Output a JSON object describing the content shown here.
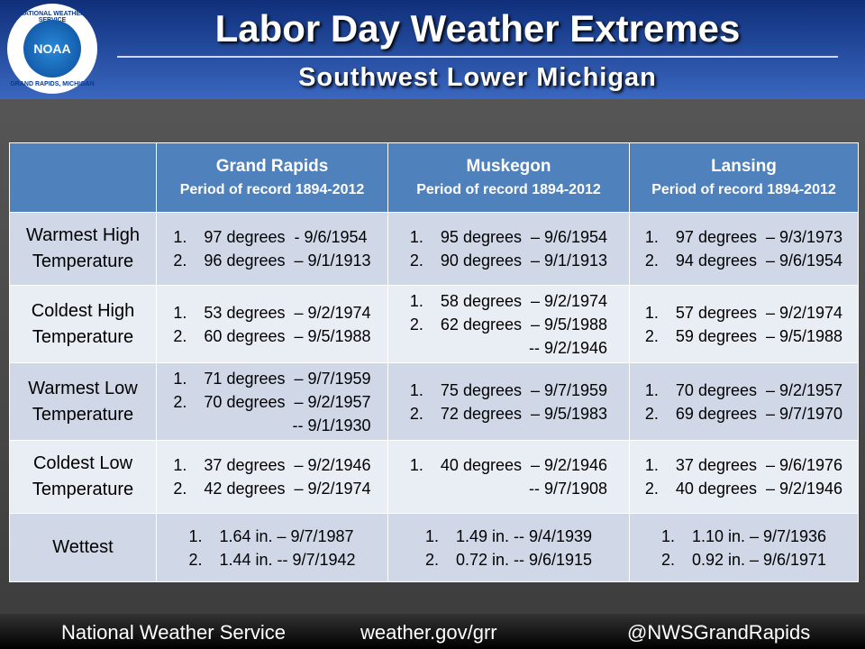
{
  "header": {
    "title": "Labor Day Weather Extremes",
    "subtitle": "Southwest Lower Michigan",
    "logo": {
      "top": "NATIONAL WEATHER SERVICE",
      "center": "NOAA",
      "bottom": "GRAND RAPIDS, MICHIGAN"
    }
  },
  "table": {
    "columns": [
      {
        "name": "Grand Rapids",
        "period": "Period of record 1894-2012"
      },
      {
        "name": "Muskegon",
        "period": "Period of record 1894-2012"
      },
      {
        "name": "Lansing",
        "period": "Period of record 1894-2012"
      }
    ],
    "rows": [
      {
        "label": "Warmest High Temperature",
        "cells": [
          [
            {
              "marker": "1.",
              "text": "97 degrees  - 9/6/1954"
            },
            {
              "marker": "2.",
              "text": "96 degrees  – 9/1/1913"
            }
          ],
          [
            {
              "marker": "1.",
              "text": "95 degrees  – 9/6/1954"
            },
            {
              "marker": "2.",
              "text": "90 degrees  – 9/1/1913"
            }
          ],
          [
            {
              "marker": "1.",
              "text": "97 degrees  – 9/3/1973"
            },
            {
              "marker": "2.",
              "text": "94 degrees  – 9/6/1954"
            }
          ]
        ]
      },
      {
        "label": "Coldest High Temperature",
        "cells": [
          [
            {
              "marker": "1.",
              "text": "53 degrees  – 9/2/1974"
            },
            {
              "marker": "2.",
              "text": "60 degrees  – 9/5/1988"
            }
          ],
          [
            {
              "marker": "1.",
              "text": "58 degrees  – 9/2/1974"
            },
            {
              "marker": "2.",
              "text": "62 degrees  – 9/5/1988"
            },
            {
              "text": "-- 9/2/1946"
            }
          ],
          [
            {
              "marker": "1.",
              "text": "57 degrees  – 9/2/1974"
            },
            {
              "marker": "2.",
              "text": "59 degrees  – 9/5/1988"
            }
          ]
        ]
      },
      {
        "label": "Warmest Low Temperature",
        "cells": [
          [
            {
              "marker": "1.",
              "text": "71 degrees  – 9/7/1959"
            },
            {
              "marker": "2.",
              "text": "70 degrees  – 9/2/1957"
            },
            {
              "text": "-- 9/1/1930"
            }
          ],
          [
            {
              "marker": "1.",
              "text": "75 degrees  – 9/7/1959"
            },
            {
              "marker": "2.",
              "text": "72 degrees  – 9/5/1983"
            }
          ],
          [
            {
              "marker": "1.",
              "text": "70 degrees  – 9/2/1957"
            },
            {
              "marker": "2.",
              "text": "69 degrees  – 9/7/1970"
            }
          ]
        ]
      },
      {
        "label": "Coldest Low Temperature",
        "cells": [
          [
            {
              "marker": "1.",
              "text": "37 degrees  – 9/2/1946"
            },
            {
              "marker": "2.",
              "text": "42 degrees  – 9/2/1974"
            }
          ],
          [
            {
              "marker": "1.",
              "text": "40 degrees  – 9/2/1946"
            },
            {
              "text": "-- 9/7/1908"
            }
          ],
          [
            {
              "marker": "1.",
              "text": "37 degrees  – 9/6/1976"
            },
            {
              "marker": "2.",
              "text": "40 degrees  – 9/2/1946"
            }
          ]
        ]
      },
      {
        "label": "Wettest",
        "cells": [
          [
            {
              "marker": "1.",
              "text": "1.64 in. – 9/7/1987"
            },
            {
              "marker": "2.",
              "text": "1.44 in. -- 9/7/1942"
            }
          ],
          [
            {
              "marker": "1.",
              "text": "1.49 in. -- 9/4/1939"
            },
            {
              "marker": "2.",
              "text": "0.72 in. -- 9/6/1915"
            }
          ],
          [
            {
              "marker": "1.",
              "text": "1.10 in. – 9/7/1936"
            },
            {
              "marker": "2.",
              "text": "0.92 in. – 9/6/1971"
            }
          ]
        ]
      }
    ]
  },
  "footer": {
    "left": "National Weather Service",
    "center": "weather.gov/grr",
    "right": "@NWSGrandRapids"
  }
}
